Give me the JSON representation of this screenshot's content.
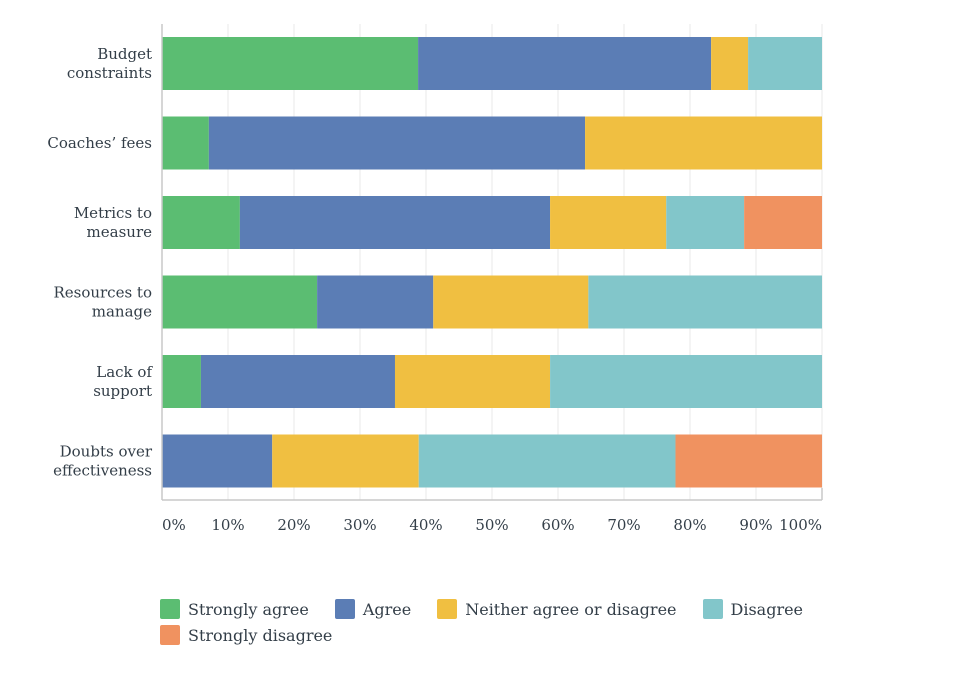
{
  "chart_data": {
    "type": "bar",
    "orientation": "horizontal",
    "stacked": true,
    "categories": [
      [
        "Budget",
        "constraints"
      ],
      [
        "Coaches’ fees"
      ],
      [
        "Metrics to",
        "measure"
      ],
      [
        "Resources to",
        "manage"
      ],
      [
        "Lack of",
        "support"
      ],
      [
        "Doubts over",
        "effectiveness"
      ]
    ],
    "series": [
      {
        "name": "Strongly agree",
        "color": "#5bbd72",
        "values": [
          38.8,
          7.1,
          11.8,
          23.5,
          5.9,
          0
        ]
      },
      {
        "name": "Agree",
        "color": "#5b7db5",
        "values": [
          44.4,
          57.0,
          47.0,
          17.6,
          29.4,
          16.7
        ]
      },
      {
        "name": "Neither agree or disagree",
        "color": "#f0bf41",
        "values": [
          5.6,
          35.9,
          17.6,
          23.5,
          23.5,
          22.2
        ]
      },
      {
        "name": "Disagree",
        "color": "#82c6ca",
        "values": [
          11.2,
          0,
          11.8,
          35.4,
          41.2,
          38.9
        ]
      },
      {
        "name": "Strongly disagree",
        "color": "#f09260",
        "values": [
          0,
          0,
          11.8,
          0,
          0,
          22.2
        ]
      }
    ],
    "xticks": [
      "0%",
      "10%",
      "20%",
      "30%",
      "40%",
      "50%",
      "60%",
      "70%",
      "80%",
      "90%",
      "100%"
    ],
    "xlim": [
      0,
      100
    ],
    "legend_position": "bottom",
    "grid": true
  }
}
